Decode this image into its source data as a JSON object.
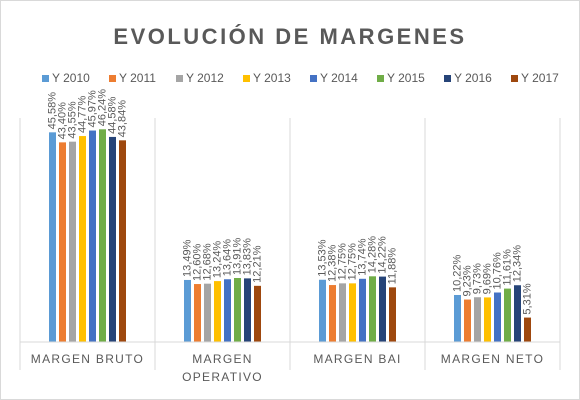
{
  "chart_data": {
    "type": "bar",
    "title": "EVOLUCIÓN DE MARGENES",
    "xlabel": "",
    "ylabel": "",
    "ylim": [
      0,
      0.5
    ],
    "grid": false,
    "legend_position": "top",
    "categories": [
      "MARGEN BRUTO",
      "MARGEN OPERATIVO",
      "MARGEN BAI",
      "MARGEN NETO"
    ],
    "series": [
      {
        "name": "Y 2010",
        "color": "#5b9bd5",
        "values": [
          0.4558,
          0.1349,
          0.1353,
          0.1022
        ],
        "labels": [
          "45,58%",
          "13,49%",
          "13,53%",
          "10,22%"
        ]
      },
      {
        "name": "Y 2011",
        "color": "#ed7d31",
        "values": [
          0.434,
          0.126,
          0.1238,
          0.0923
        ],
        "labels": [
          "43,40%",
          "12,60%",
          "12,38%",
          "9,23%"
        ]
      },
      {
        "name": "Y 2012",
        "color": "#a5a5a5",
        "values": [
          0.4355,
          0.1268,
          0.1275,
          0.0973
        ],
        "labels": [
          "43,55%",
          "12,68%",
          "12,75%",
          "9,73%"
        ]
      },
      {
        "name": "Y 2013",
        "color": "#ffc000",
        "values": [
          0.4477,
          0.1324,
          0.1275,
          0.0969
        ],
        "labels": [
          "44,77%",
          "13,24%",
          "12,75%",
          "9,69%"
        ]
      },
      {
        "name": "Y 2014",
        "color": "#4472c4",
        "values": [
          0.4597,
          0.1364,
          0.1374,
          0.1076
        ],
        "labels": [
          "45,97%",
          "13,64%",
          "13,74%",
          "10,76%"
        ]
      },
      {
        "name": "Y 2015",
        "color": "#70ad47",
        "values": [
          0.4624,
          0.1391,
          0.1428,
          0.1161
        ],
        "labels": [
          "46,24%",
          "13,91%",
          "14,28%",
          "11,61%"
        ]
      },
      {
        "name": "Y 2016",
        "color": "#264478",
        "values": [
          0.4458,
          0.1383,
          0.1422,
          0.1234
        ],
        "labels": [
          "44,58%",
          "13,83%",
          "14,22%",
          "12,34%"
        ]
      },
      {
        "name": "Y 2017",
        "color": "#9e480e",
        "values": [
          0.4384,
          0.1221,
          0.1188,
          0.0531
        ],
        "labels": [
          "43,84%",
          "12,21%",
          "11,88%",
          "5,31%"
        ]
      }
    ]
  }
}
